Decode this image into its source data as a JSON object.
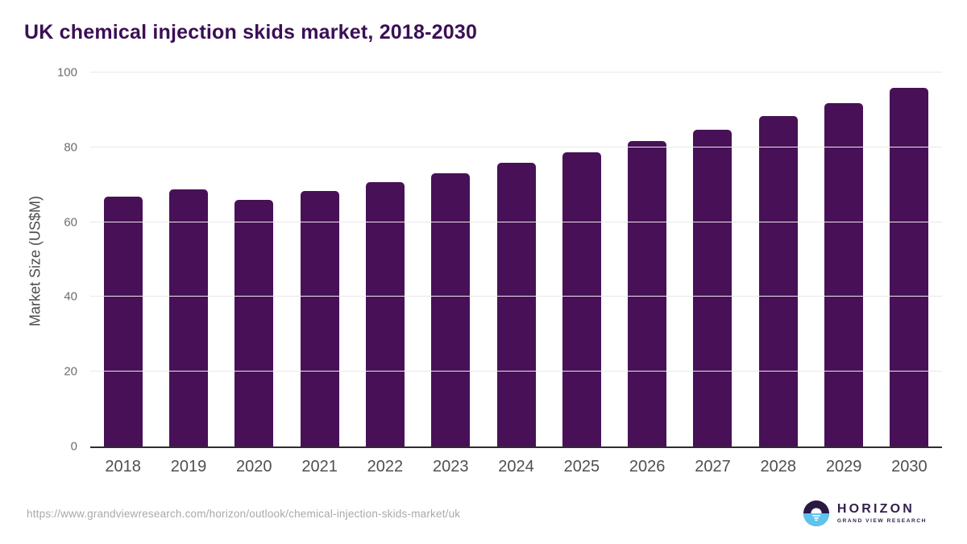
{
  "title": "UK chemical injection skids market, 2018-2030",
  "chart_data": {
    "type": "bar",
    "title": "UK chemical injection skids market, 2018-2030",
    "categories": [
      "2018",
      "2019",
      "2020",
      "2021",
      "2022",
      "2023",
      "2024",
      "2025",
      "2026",
      "2027",
      "2028",
      "2029",
      "2030"
    ],
    "values": [
      66.8,
      68.8,
      65.9,
      68.3,
      70.7,
      73.1,
      75.8,
      78.6,
      81.6,
      84.7,
      88.3,
      91.8,
      95.9
    ],
    "xlabel": "",
    "ylabel": "Market Size (US$M)",
    "ylim": [
      0,
      100
    ],
    "yticks": [
      0,
      20,
      40,
      60,
      80,
      100
    ],
    "grid": "horizontal",
    "legend": "none",
    "bar_color": "#481157"
  },
  "footer": {
    "source_url": "https://www.grandviewresearch.com/horizon/outlook/chemical-injection-skids-market/uk",
    "logo": {
      "name": "HORIZON",
      "subtitle": "GRAND VIEW RESEARCH",
      "circle_top_color": "#2a1a43",
      "circle_bottom_color": "#5ec3f0",
      "text_color": "#32204e"
    }
  },
  "colors": {
    "title": "#3b0f55",
    "bar": "#481157",
    "gridline": "#e8e8e8",
    "axis_line": "#2d2d2d",
    "tick_label": "#6d6d6d",
    "x_label": "#4f4f4f",
    "source_url": "#a9a9a9"
  }
}
